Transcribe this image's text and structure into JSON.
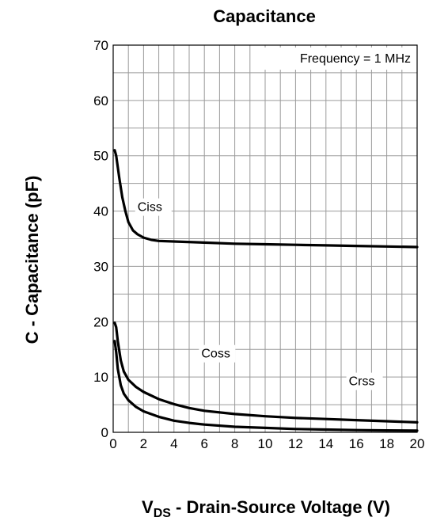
{
  "chart_data": {
    "type": "line",
    "title": "Capacitance",
    "xlabel_main": "V",
    "xlabel_sub": "DS",
    "xlabel_rest": " - Drain-Source Voltage (V)",
    "ylabel": "C - Capacitance (pF)",
    "annotation": "Frequency = 1 MHz",
    "xlim": [
      0,
      20
    ],
    "ylim": [
      0,
      70
    ],
    "xticks": [
      0,
      2,
      4,
      6,
      8,
      10,
      12,
      14,
      16,
      18,
      20
    ],
    "yticks": [
      0,
      10,
      20,
      30,
      40,
      50,
      60,
      70
    ],
    "grid": true,
    "series": [
      {
        "name": "Ciss",
        "label_at": [
          1.6,
          40
        ],
        "x": [
          0.1,
          0.2,
          0.4,
          0.6,
          0.8,
          1.0,
          1.3,
          1.6,
          2.0,
          2.5,
          3.0,
          4.0,
          6.0,
          8.0,
          10.0,
          12.0,
          14.0,
          16.0,
          18.0,
          20.0
        ],
        "y": [
          51,
          50,
          46,
          42.5,
          40,
          38,
          36.5,
          35.8,
          35.2,
          34.8,
          34.6,
          34.5,
          34.3,
          34.1,
          34.0,
          33.9,
          33.8,
          33.7,
          33.6,
          33.5
        ]
      },
      {
        "name": "Coss",
        "label_at": [
          5.8,
          13.5
        ],
        "x": [
          0.1,
          0.2,
          0.3,
          0.5,
          0.7,
          1.0,
          1.5,
          2.0,
          3.0,
          4.0,
          5.0,
          6.0,
          8.0,
          10.0,
          12.0,
          14.0,
          16.0,
          18.0,
          20.0
        ],
        "y": [
          19.8,
          19,
          16.5,
          13,
          11,
          9.5,
          8.2,
          7.3,
          6.0,
          5.1,
          4.4,
          3.9,
          3.3,
          2.9,
          2.6,
          2.4,
          2.2,
          2.0,
          1.8
        ]
      },
      {
        "name": "Crss",
        "label_at": [
          15.5,
          8.5
        ],
        "x": [
          0.1,
          0.2,
          0.3,
          0.5,
          0.7,
          1.0,
          1.5,
          2.0,
          3.0,
          4.0,
          5.0,
          6.0,
          8.0,
          10.0,
          12.0,
          14.0,
          16.0,
          18.0,
          20.0
        ],
        "y": [
          16.5,
          14.5,
          11.5,
          8.5,
          7.0,
          5.8,
          4.6,
          3.8,
          2.8,
          2.1,
          1.7,
          1.4,
          1.0,
          0.8,
          0.6,
          0.5,
          0.4,
          0.35,
          0.3
        ]
      }
    ]
  }
}
